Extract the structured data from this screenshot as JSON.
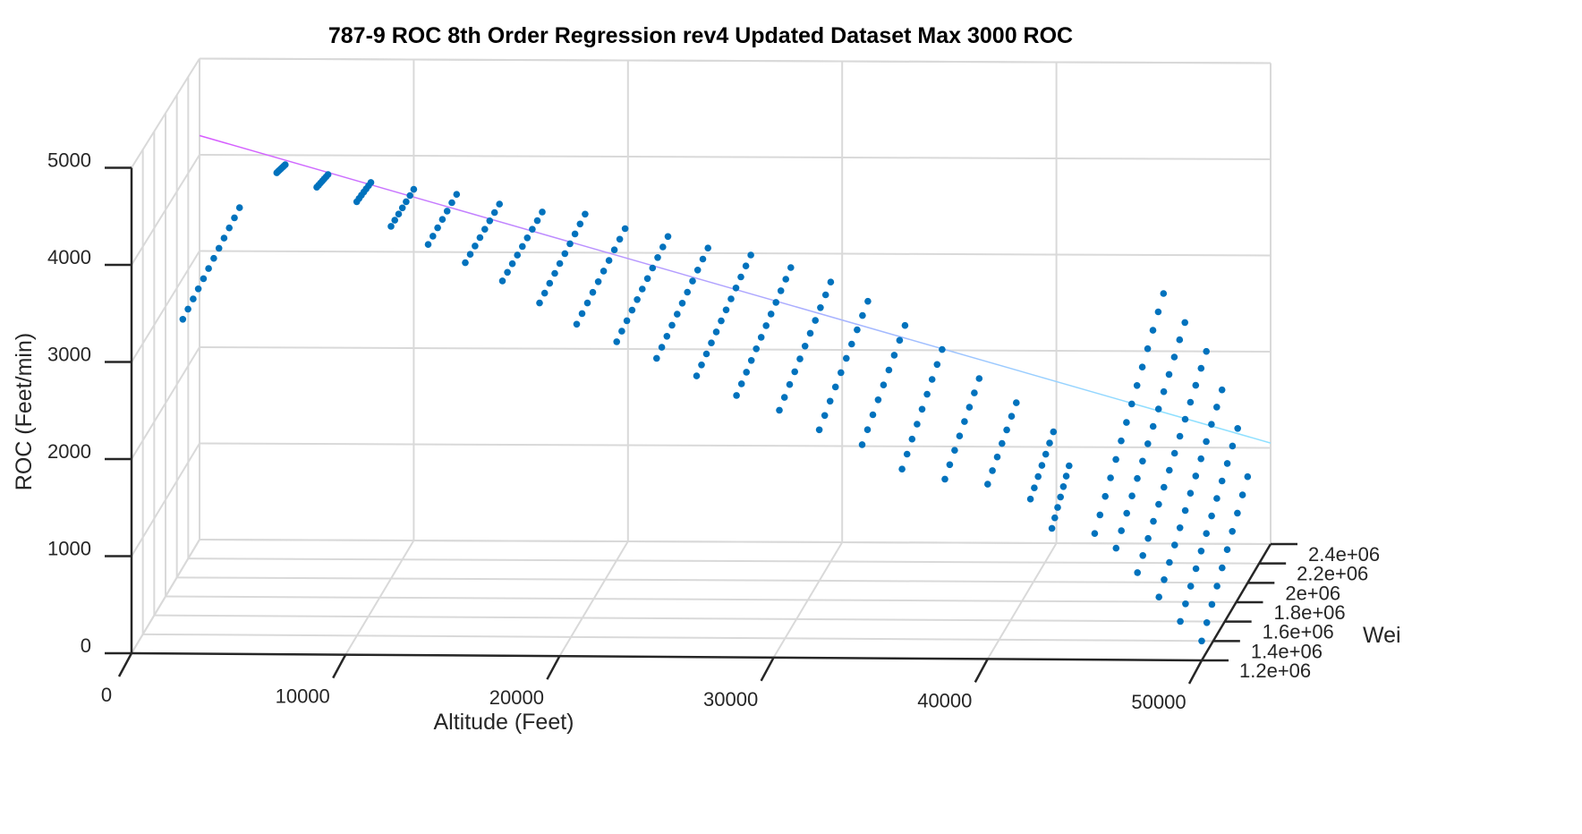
{
  "title": "787-9 ROC 8th Order Regression rev4 Updated Dataset Max 3000 ROC",
  "colors": {
    "points": "#0072bd",
    "grid": "#d9d9d9",
    "axis": "#262626",
    "fit_start": "#d957ff",
    "fit_end": "#8fe0ff"
  },
  "chart_data": {
    "type": "scatter",
    "title": "787-9 ROC 8th Order Regression rev4 Updated Dataset Max 3000 ROC",
    "xlabel": "Altitude (Feet)",
    "ylabel": "Wei",
    "zlabel": "ROC (Feet/min)",
    "xlim": [
      0,
      50000
    ],
    "ylim": [
      1200000,
      2400000
    ],
    "zlim": [
      0,
      5000
    ],
    "x_ticks": [
      "0",
      "10000",
      "20000",
      "30000",
      "40000",
      "50000"
    ],
    "y_ticks": [
      "1.2e+06",
      "1.4e+06",
      "1.6e+06",
      "1.8e+06",
      "2e+06",
      "2.2e+06",
      "2.4e+06"
    ],
    "z_ticks": [
      "0",
      "1000",
      "2000",
      "3000",
      "4000",
      "5000"
    ],
    "grid": true,
    "series": [
      {
        "kind": "points",
        "clusters": [
          {
            "alt": 2000,
            "w": [
              1350000.0,
              2350000.0
            ],
            "roc": [
              3300,
              3500
            ]
          },
          {
            "alt": 4000,
            "w": [
              2250000.0,
              2400000.0
            ],
            "roc": [
              3960,
              3900
            ]
          },
          {
            "alt": 6000,
            "w": [
              2200000.0,
              2400000.0
            ],
            "roc": [
              3860,
              3800
            ]
          },
          {
            "alt": 8000,
            "w": [
              2150000.0,
              2400000.0
            ],
            "roc": [
              3760,
              3720
            ]
          },
          {
            "alt": 10000,
            "w": [
              2000000.0,
              2400000.0
            ],
            "roc": [
              3650,
              3650
            ]
          },
          {
            "alt": 12000,
            "w": [
              1900000.0,
              2400000.0
            ],
            "roc": [
              3560,
              3600
            ]
          },
          {
            "alt": 14000,
            "w": [
              1800000.0,
              2400000.0
            ],
            "roc": [
              3470,
              3500
            ]
          },
          {
            "alt": 16000,
            "w": [
              1700000.0,
              2400000.0
            ],
            "roc": [
              3380,
              3420
            ]
          },
          {
            "alt": 18000,
            "w": [
              1600000.0,
              2400000.0
            ],
            "roc": [
              3250,
              3400
            ]
          },
          {
            "alt": 20000,
            "w": [
              1500000.0,
              2350000.0
            ],
            "roc": [
              3130,
              3300
            ]
          },
          {
            "alt": 22000,
            "w": [
              1450000.0,
              2350000.0
            ],
            "roc": [
              3000,
              3220
            ]
          },
          {
            "alt": 24000,
            "w": [
              1400000.0,
              2300000.0
            ],
            "roc": [
              2880,
              3150
            ]
          },
          {
            "alt": 26000,
            "w": [
              1350000.0,
              2300000.0
            ],
            "roc": [
              2750,
              3080
            ]
          },
          {
            "alt": 28000,
            "w": [
              1300000.0,
              2250000.0
            ],
            "roc": [
              2600,
              3000
            ]
          },
          {
            "alt": 30000,
            "w": [
              1300000.0,
              2200000.0
            ],
            "roc": [
              2450,
              2900
            ]
          },
          {
            "alt": 32000,
            "w": [
              1250000.0,
              2100000.0
            ],
            "roc": [
              2300,
              2800
            ]
          },
          {
            "alt": 34000,
            "w": [
              1250000.0,
              2000000.0
            ],
            "roc": [
              2150,
              2650
            ]
          },
          {
            "alt": 36000,
            "w": [
              1200000.0,
              1900000.0
            ],
            "roc": [
              1950,
              2500
            ]
          },
          {
            "alt": 38000,
            "w": [
              1200000.0,
              1800000.0
            ],
            "roc": [
              1850,
              2300
            ]
          },
          {
            "alt": 40000,
            "w": [
              1200000.0,
              1700000.0
            ],
            "roc": [
              1800,
              2150
            ]
          },
          {
            "alt": 42000,
            "w": [
              1200000.0,
              1600000.0
            ],
            "roc": [
              1650,
              1950
            ]
          },
          {
            "alt": 43000,
            "w": [
              1200000.0,
              1500000.0
            ],
            "roc": [
              1350,
              1700
            ]
          },
          {
            "alt": 45000,
            "w": [
              1200000.0,
              2400000.0
            ],
            "roc": [
              1300,
              2600
            ]
          },
          {
            "alt": 46000,
            "w": [
              1200000.0,
              2400000.0
            ],
            "roc": [
              1150,
              2300
            ]
          },
          {
            "alt": 47000,
            "w": [
              1200000.0,
              2400000.0
            ],
            "roc": [
              900,
              2000
            ]
          },
          {
            "alt": 48000,
            "w": [
              1200000.0,
              2300000.0
            ],
            "roc": [
              650,
              1700
            ]
          },
          {
            "alt": 49000,
            "w": [
              1200000.0,
              2200000.0
            ],
            "roc": [
              400,
              1400
            ]
          },
          {
            "alt": 50000,
            "w": [
              1200000.0,
              2000000.0
            ],
            "roc": [
              200,
              1100
            ]
          }
        ]
      },
      {
        "kind": "regression-line",
        "points": [
          {
            "alt": 0,
            "w": 2400000.0,
            "roc": 4200
          },
          {
            "alt": 50000,
            "w": 2400000.0,
            "roc": 1050
          }
        ]
      }
    ]
  }
}
